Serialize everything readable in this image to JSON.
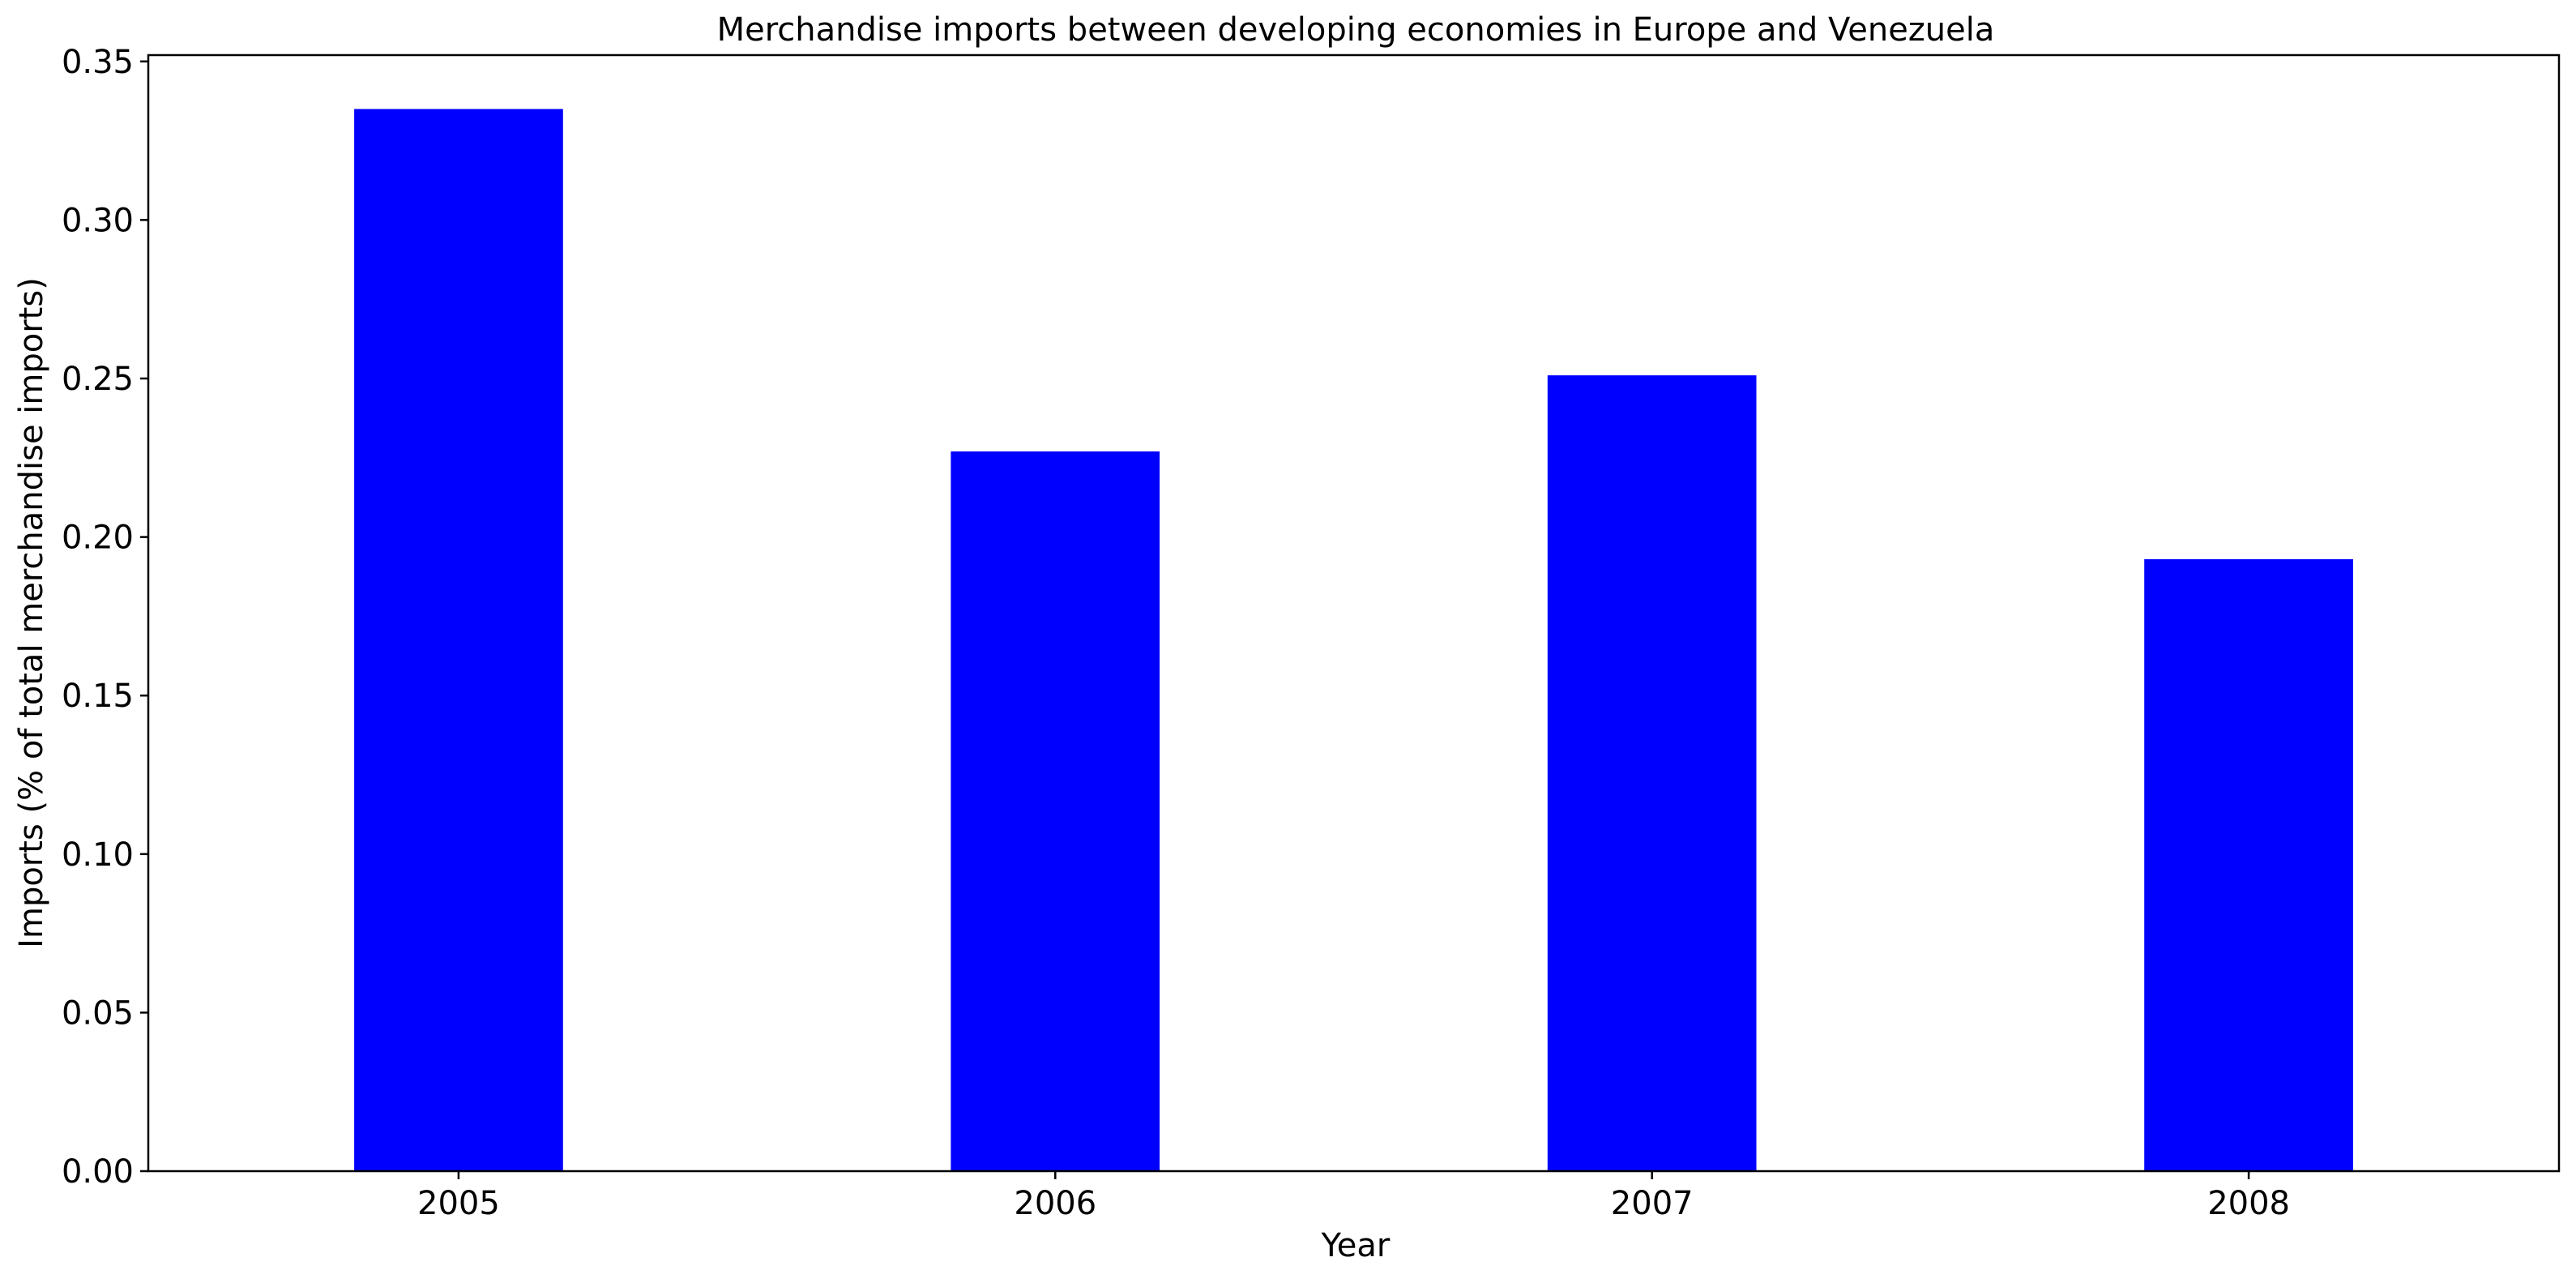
{
  "chart_data": {
    "type": "bar",
    "title": "Merchandise imports between developing economies in Europe and Venezuela",
    "xlabel": "Year",
    "ylabel": "Imports (% of total merchandise imports)",
    "categories": [
      "2005",
      "2006",
      "2007",
      "2008"
    ],
    "values": [
      0.335,
      0.227,
      0.251,
      0.193
    ],
    "ylim": [
      0,
      0.352
    ],
    "yticks": [
      0.0,
      0.05,
      0.1,
      0.15,
      0.2,
      0.25,
      0.3,
      0.35
    ],
    "ytick_labels": [
      "0.00",
      "0.05",
      "0.10",
      "0.15",
      "0.20",
      "0.25",
      "0.30",
      "0.35"
    ],
    "bar_color": "#0000ff",
    "grid": false,
    "legend": false
  }
}
